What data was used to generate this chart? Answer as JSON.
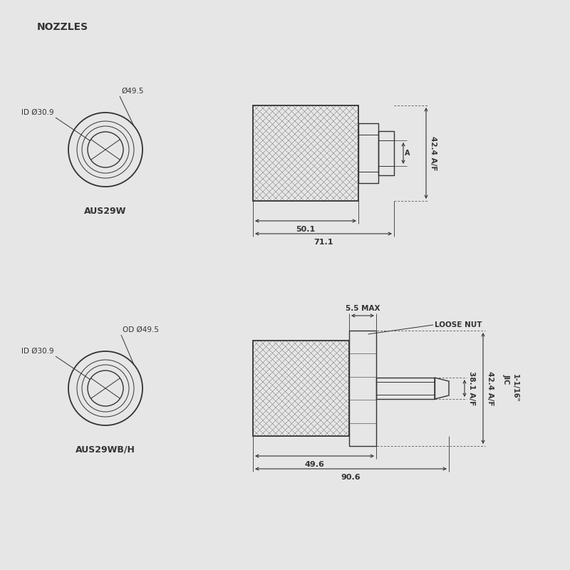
{
  "bg_color": "#e6e6e6",
  "line_color": "#333333",
  "title": "NOZZLES",
  "nozzle1_label": "AUS29W",
  "nozzle2_label": "AUS29WB/H",
  "n1_od": "49.5",
  "n1_id": "30.9",
  "n2_od": "49.5",
  "n2_id": "30.9",
  "n1_len1": "50.1",
  "n1_len2": "71.1",
  "n1_af": "42.4 A/F",
  "n1_af_label": "A",
  "n2_len1": "49.6",
  "n2_len2": "90.6",
  "n2_af1": "38.1 A/F",
  "n2_af2": "42.4 A/F",
  "n2_max": "5.5 MAX",
  "n2_jic": "1-1/16\"\nJIC",
  "n2_loose_nut": "LOOSE NUT"
}
